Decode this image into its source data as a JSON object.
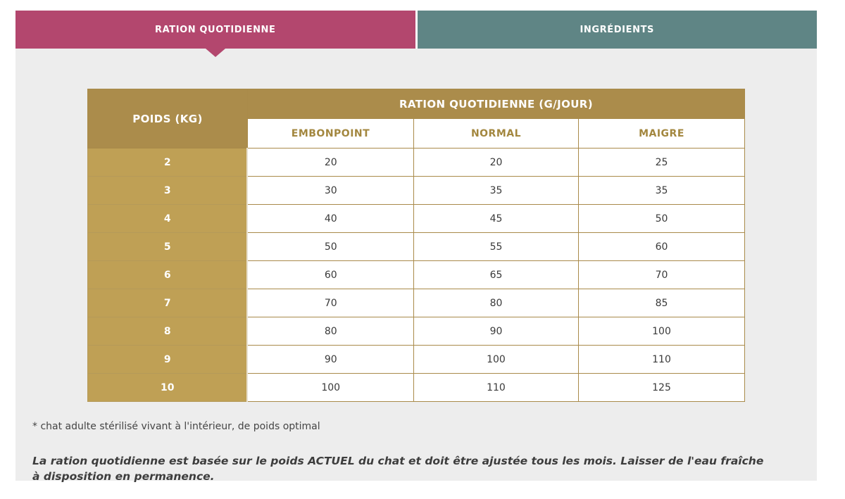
{
  "tabs": {
    "ration": {
      "label": "RATION QUOTIDIENNE",
      "active": true
    },
    "ingredients": {
      "label": "INGRÉDIENTS",
      "active": false
    }
  },
  "table": {
    "col1_header": "POIDS (KG)",
    "span_header": "RATION QUOTIDIENNE (G/JOUR)",
    "sub_headers": [
      "EMBONPOINT",
      "NORMAL",
      "MAIGRE"
    ],
    "rows": [
      {
        "poids": "2",
        "values": [
          "20",
          "20",
          "25"
        ]
      },
      {
        "poids": "3",
        "values": [
          "30",
          "35",
          "35"
        ]
      },
      {
        "poids": "4",
        "values": [
          "40",
          "45",
          "50"
        ]
      },
      {
        "poids": "5",
        "values": [
          "50",
          "55",
          "60"
        ]
      },
      {
        "poids": "6",
        "values": [
          "60",
          "65",
          "70"
        ]
      },
      {
        "poids": "7",
        "values": [
          "70",
          "80",
          "85"
        ]
      },
      {
        "poids": "8",
        "values": [
          "80",
          "90",
          "100"
        ]
      },
      {
        "poids": "9",
        "values": [
          "90",
          "100",
          "110"
        ]
      },
      {
        "poids": "10",
        "values": [
          "100",
          "110",
          "125"
        ]
      }
    ]
  },
  "footnote": "* chat adulte stérilisé vivant à l'intérieur, de poids optimal",
  "note": "La ration quotidienne est basée sur le poids ACTUEL du chat et doit être ajustée tous les mois. Laisser de l'eau fraîche à disposition en permanence.",
  "colors": {
    "active_tab": "#b3476e",
    "inactive_tab": "#5f8585",
    "header_gold": "#ab8c4b",
    "row_label_gold": "#bfa055",
    "sub_header_text": "#a3873f",
    "panel_background": "#ededed"
  }
}
